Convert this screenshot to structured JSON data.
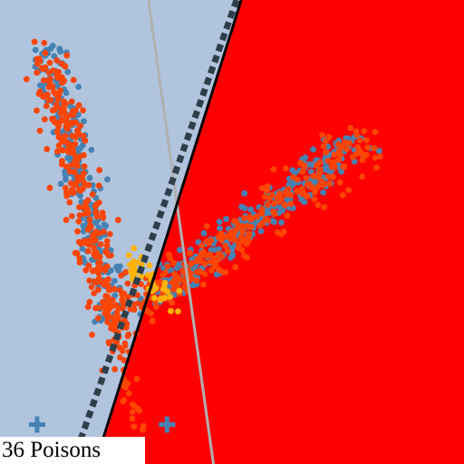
{
  "caption": "36 Poisons",
  "chart_data": {
    "type": "scatter",
    "title": "",
    "xlabel": "",
    "ylabel": "",
    "xlim": [
      0,
      1
    ],
    "ylim": [
      0,
      1
    ],
    "grid": false,
    "legend": "none",
    "colors": {
      "region_a": "#b0c4de",
      "region_b": "#ff0000",
      "class_a_points": "#4682b4",
      "class_b_points": "#ff4500",
      "poison_points": "#ffb300",
      "boundary_line": "#000000",
      "dashed_boundary": "#2f3f4a",
      "reference_line": "#b0b0b0",
      "marker_plus": "#4682b4"
    },
    "boundaries": {
      "solid": [
        [
          0.52,
          1.0
        ],
        [
          0.205,
          0.0
        ]
      ],
      "dashed": [
        [
          0.51,
          1.0
        ],
        [
          0.155,
          0.0
        ]
      ],
      "reference": [
        [
          0.32,
          1.0
        ],
        [
          0.46,
          0.0
        ]
      ]
    },
    "clusters": [
      {
        "label": "class-a-left-cluster",
        "color_key": "class_a_points",
        "count": 260,
        "start": [
          0.1,
          0.9
        ],
        "end": [
          0.25,
          0.3
        ],
        "spread": 0.018
      },
      {
        "label": "class-b-left-cluster",
        "color_key": "class_b_points",
        "count": 320,
        "start": [
          0.1,
          0.88
        ],
        "end": [
          0.26,
          0.26
        ],
        "spread": 0.02
      },
      {
        "label": "class-a-right-cluster",
        "color_key": "class_a_points",
        "count": 300,
        "start": [
          0.33,
          0.36
        ],
        "end": [
          0.78,
          0.7
        ],
        "spread": 0.02
      },
      {
        "label": "class-b-right-cluster",
        "color_key": "class_b_points",
        "count": 260,
        "start": [
          0.3,
          0.34
        ],
        "end": [
          0.8,
          0.7
        ],
        "spread": 0.026
      },
      {
        "label": "class-b-tail",
        "color_key": "class_b_points",
        "count": 30,
        "start": [
          0.24,
          0.3
        ],
        "end": [
          0.3,
          0.08
        ],
        "spread": 0.012
      },
      {
        "label": "poison-points",
        "color_key": "poison_points",
        "count": 36,
        "start": [
          0.28,
          0.44
        ],
        "end": [
          0.38,
          0.34
        ],
        "spread": 0.015
      }
    ],
    "markers": [
      {
        "label": "plus-marker-left",
        "x": 0.08,
        "y": 0.085
      },
      {
        "label": "plus-marker-right",
        "x": 0.36,
        "y": 0.085
      }
    ]
  }
}
